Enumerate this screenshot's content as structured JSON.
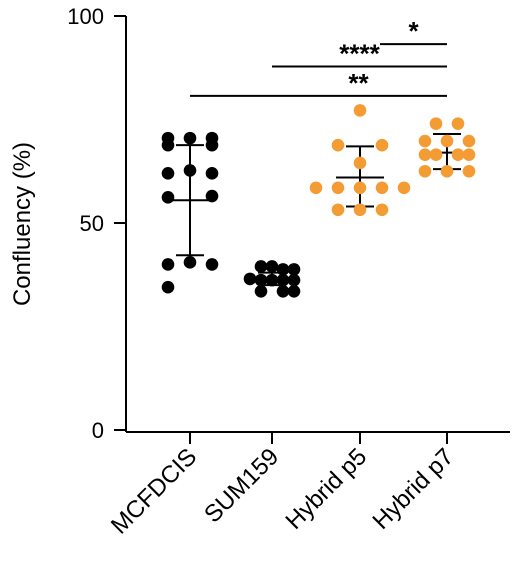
{
  "chart_data": {
    "type": "scatter",
    "ylabel": "Confluency (%)",
    "ylim": [
      0,
      100
    ],
    "yticks": [
      "0",
      "50",
      "100"
    ],
    "categories": [
      "MCFDCIS",
      "SUM159",
      "Hybrid p5",
      "Hybrid p7"
    ],
    "colors": [
      "#000000",
      "#000000",
      "#f39c34",
      "#f39c34"
    ],
    "groups": [
      {
        "name": "MCFDCIS",
        "mean": 55.5,
        "sd_low": 42.2,
        "sd_high": 68.8,
        "points": [
          {
            "offset": -1,
            "y": 70.5
          },
          {
            "offset": 0,
            "y": 70.5
          },
          {
            "offset": 1,
            "y": 70.5
          },
          {
            "offset": -1,
            "y": 68.8
          },
          {
            "offset": 1,
            "y": 68.8
          },
          {
            "offset": -1,
            "y": 62.0
          },
          {
            "offset": 0,
            "y": 62.7
          },
          {
            "offset": 1,
            "y": 62.0
          },
          {
            "offset": -1,
            "y": 56.2
          },
          {
            "offset": 1,
            "y": 56.5
          },
          {
            "offset": -1,
            "y": 40.0
          },
          {
            "offset": 0,
            "y": 40.5
          },
          {
            "offset": 1,
            "y": 40.0
          },
          {
            "offset": -1,
            "y": 34.5
          }
        ]
      },
      {
        "name": "SUM159",
        "mean": 36.5,
        "sd_low": 35.0,
        "sd_high": 38.0,
        "points": [
          {
            "offset": -1,
            "y": 39.5
          },
          {
            "offset": 0,
            "y": 39.5
          },
          {
            "offset": 1,
            "y": 38.8
          },
          {
            "offset": 2,
            "y": 38.8
          },
          {
            "offset": -1,
            "y": 36.2
          },
          {
            "offset": 0,
            "y": 36.2
          },
          {
            "offset": 1,
            "y": 36.2
          },
          {
            "offset": 2,
            "y": 36.2
          },
          {
            "offset": -2,
            "y": 36.5
          },
          {
            "offset": -1,
            "y": 33.5
          },
          {
            "offset": 1,
            "y": 33.5
          },
          {
            "offset": 2,
            "y": 33.5
          }
        ]
      },
      {
        "name": "Hybrid p5",
        "mean": 61.0,
        "sd_low": 54.0,
        "sd_high": 68.5,
        "points": [
          {
            "offset": 0,
            "y": 77.2
          },
          {
            "offset": -1,
            "y": 68.8
          },
          {
            "offset": 1,
            "y": 68.8
          },
          {
            "offset": 0,
            "y": 64.5
          },
          {
            "offset": -2,
            "y": 58.5
          },
          {
            "offset": -1,
            "y": 58.5
          },
          {
            "offset": 0,
            "y": 58.5
          },
          {
            "offset": 1,
            "y": 58.5
          },
          {
            "offset": 2,
            "y": 58.5
          },
          {
            "offset": -1,
            "y": 53.2
          },
          {
            "offset": 0,
            "y": 53.2
          },
          {
            "offset": 1,
            "y": 53.2
          }
        ]
      },
      {
        "name": "Hybrid p7",
        "mean": 67.0,
        "sd_low": 63.0,
        "sd_high": 71.5,
        "points": [
          {
            "offset": -1,
            "y": 74.0
          },
          {
            "offset": 1,
            "y": 74.0
          },
          {
            "offset": -2,
            "y": 69.8
          },
          {
            "offset": 0,
            "y": 69.8
          },
          {
            "offset": 2,
            "y": 69.8
          },
          {
            "offset": -2,
            "y": 66.5
          },
          {
            "offset": -1,
            "y": 66.5
          },
          {
            "offset": 1,
            "y": 66.5
          },
          {
            "offset": 2,
            "y": 66.5
          },
          {
            "offset": -2,
            "y": 62.5
          },
          {
            "offset": 0,
            "y": 62.5
          },
          {
            "offset": 2,
            "y": 62.5
          }
        ]
      }
    ],
    "significance": [
      {
        "from": 0,
        "to": 3,
        "y": 80.7,
        "label": "**"
      },
      {
        "from": 1,
        "to": 3,
        "y": 87.8,
        "label": "****"
      },
      {
        "from": 2,
        "to": 3,
        "y": 93.2,
        "label": "*"
      }
    ]
  }
}
